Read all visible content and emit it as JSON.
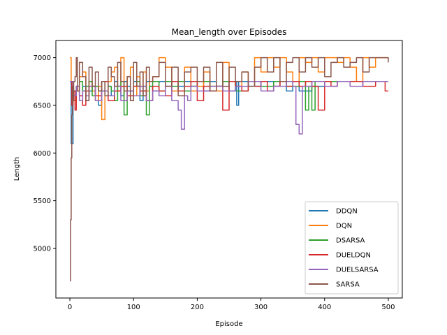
{
  "chart_data": {
    "type": "line",
    "title": "Mean_length over Episodes",
    "xlabel": "Episode",
    "ylabel": "Length",
    "xlim": [
      -22,
      522
    ],
    "ylim": [
      4480,
      7180
    ],
    "xticks": [
      0,
      100,
      200,
      300,
      400,
      500
    ],
    "xtick_labels": [
      "0",
      "100",
      "200",
      "300",
      "400",
      "500"
    ],
    "yticks": [
      5000,
      5500,
      6000,
      6500,
      7000
    ],
    "ytick_labels": [
      "5000",
      "5500",
      "6000",
      "6500",
      "7000"
    ],
    "grid": false,
    "legend_position": "lower-right",
    "series": [
      {
        "name": "DDQN",
        "color": "#1f77b4",
        "x": [
          0,
          2,
          5,
          10,
          15,
          20,
          25,
          30,
          35,
          40,
          45,
          50,
          55,
          60,
          65,
          70,
          75,
          80,
          85,
          90,
          95,
          100,
          105,
          110,
          115,
          120,
          125,
          130,
          140,
          150,
          160,
          170,
          180,
          190,
          200,
          210,
          220,
          230,
          240,
          250,
          260,
          262,
          265,
          280,
          300,
          320,
          330,
          340,
          350,
          360,
          380,
          400,
          420,
          440,
          460,
          480,
          500
        ],
        "y": [
          6750,
          6100,
          6550,
          6650,
          6600,
          6700,
          6550,
          6650,
          6700,
          6600,
          6500,
          6650,
          6750,
          6700,
          6600,
          6750,
          6700,
          6600,
          6750,
          6700,
          6650,
          6750,
          6700,
          6550,
          6700,
          6750,
          6700,
          6650,
          6750,
          6700,
          6750,
          6700,
          6750,
          6700,
          6750,
          6650,
          6750,
          6700,
          6750,
          6650,
          6750,
          6500,
          6750,
          6700,
          6750,
          6700,
          6750,
          6650,
          6750,
          6650,
          6700,
          6750,
          6750,
          6750,
          6750,
          6750,
          6750
        ]
      },
      {
        "name": "DQN",
        "color": "#ff7f0e",
        "x": [
          0,
          2,
          5,
          10,
          15,
          20,
          25,
          30,
          35,
          40,
          45,
          50,
          55,
          60,
          65,
          70,
          75,
          80,
          85,
          90,
          95,
          100,
          105,
          110,
          115,
          120,
          125,
          130,
          140,
          150,
          160,
          170,
          180,
          190,
          200,
          210,
          220,
          230,
          240,
          250,
          260,
          270,
          280,
          290,
          300,
          310,
          320,
          330,
          340,
          350,
          360,
          370,
          380,
          390,
          400,
          410,
          420,
          430,
          440,
          450,
          460,
          470,
          480,
          490,
          500
        ],
        "y": [
          7000,
          6750,
          6550,
          6650,
          6800,
          6850,
          6600,
          6750,
          6650,
          6550,
          6700,
          6350,
          6600,
          6750,
          6850,
          6900,
          6650,
          7000,
          6550,
          6800,
          6900,
          6600,
          6800,
          6700,
          6850,
          6650,
          6750,
          6800,
          7000,
          6900,
          6650,
          6750,
          6900,
          6650,
          6700,
          6850,
          6700,
          6650,
          6950,
          6750,
          6700,
          6850,
          6750,
          7000,
          6850,
          7000,
          6900,
          7000,
          6850,
          6750,
          7000,
          6950,
          7000,
          6850,
          7000,
          7000,
          6950,
          7000,
          6900,
          6750,
          7000,
          6900,
          7000,
          7000,
          7000
        ]
      },
      {
        "name": "DSARSA",
        "color": "#2ca02c",
        "x": [
          0,
          5,
          10,
          15,
          20,
          25,
          30,
          35,
          40,
          45,
          50,
          55,
          60,
          65,
          70,
          75,
          80,
          85,
          90,
          95,
          100,
          105,
          110,
          115,
          120,
          125,
          130,
          140,
          150,
          160,
          170,
          180,
          190,
          200,
          220,
          240,
          260,
          280,
          300,
          320,
          340,
          360,
          370,
          375,
          380,
          385,
          400,
          420,
          440,
          460,
          480,
          500
        ],
        "y": [
          6750,
          6650,
          6700,
          6750,
          6650,
          6700,
          6750,
          6600,
          6700,
          6650,
          6750,
          6600,
          6700,
          6650,
          6550,
          6700,
          6750,
          6400,
          6650,
          6550,
          6700,
          6750,
          6600,
          6650,
          6400,
          6700,
          6750,
          6650,
          6750,
          6700,
          6750,
          6650,
          6700,
          6750,
          6700,
          6750,
          6650,
          6750,
          6700,
          6750,
          6700,
          6750,
          6450,
          6700,
          6450,
          6750,
          6750,
          6750,
          6750,
          6750,
          6750,
          6750
        ]
      },
      {
        "name": "DUELDQN",
        "color": "#d62728",
        "x": [
          0,
          3,
          5,
          8,
          10,
          15,
          20,
          25,
          30,
          40,
          50,
          60,
          70,
          80,
          90,
          100,
          110,
          120,
          130,
          140,
          150,
          160,
          170,
          180,
          190,
          200,
          210,
          220,
          230,
          240,
          250,
          260,
          270,
          280,
          290,
          300,
          310,
          320,
          330,
          340,
          350,
          360,
          370,
          380,
          390,
          400,
          410,
          420,
          440,
          460,
          480,
          490,
          495,
          500
        ],
        "y": [
          6750,
          6500,
          6650,
          6450,
          6700,
          6600,
          6500,
          6650,
          6700,
          6600,
          6750,
          6550,
          6650,
          6700,
          6600,
          6700,
          6650,
          6550,
          6700,
          6650,
          6600,
          6750,
          6650,
          6700,
          6750,
          6550,
          6700,
          6650,
          6700,
          6450,
          6750,
          6700,
          6650,
          6750,
          6700,
          6750,
          6650,
          6700,
          6750,
          6700,
          6750,
          6700,
          6750,
          6700,
          6450,
          6750,
          6700,
          6750,
          6750,
          6700,
          6750,
          6750,
          6650,
          6650
        ]
      },
      {
        "name": "DUELSARSA",
        "color": "#9467bd",
        "x": [
          0,
          5,
          10,
          15,
          20,
          25,
          30,
          40,
          50,
          60,
          70,
          80,
          90,
          100,
          110,
          120,
          130,
          140,
          150,
          160,
          170,
          175,
          180,
          185,
          190,
          200,
          220,
          240,
          260,
          280,
          300,
          320,
          340,
          350,
          355,
          360,
          365,
          380,
          400,
          420,
          440,
          460,
          480,
          500
        ],
        "y": [
          6750,
          6600,
          6700,
          6550,
          6650,
          6600,
          6700,
          6550,
          6650,
          6600,
          6700,
          6550,
          6650,
          6600,
          6700,
          6550,
          6650,
          6600,
          6700,
          6550,
          6450,
          6250,
          6600,
          6550,
          6700,
          6650,
          6700,
          6650,
          6700,
          6750,
          6650,
          6700,
          6750,
          6700,
          6300,
          6200,
          6700,
          6750,
          6700,
          6750,
          6700,
          6750,
          6750,
          6750
        ]
      },
      {
        "name": "SARSA",
        "color": "#8c564b",
        "x": [
          0,
          1,
          2,
          3,
          4,
          5,
          6,
          8,
          10,
          12,
          15,
          20,
          25,
          30,
          35,
          40,
          45,
          50,
          55,
          60,
          65,
          70,
          75,
          80,
          85,
          90,
          95,
          100,
          105,
          110,
          115,
          120,
          125,
          130,
          140,
          150,
          160,
          170,
          180,
          190,
          200,
          210,
          220,
          230,
          240,
          250,
          260,
          270,
          280,
          290,
          300,
          310,
          320,
          330,
          340,
          350,
          360,
          370,
          380,
          390,
          400,
          410,
          420,
          430,
          440,
          450,
          460,
          470,
          480,
          490,
          500
        ],
        "y": [
          4660,
          5300,
          5950,
          6400,
          6700,
          6550,
          6750,
          6800,
          7000,
          6650,
          6950,
          6800,
          6550,
          6900,
          6700,
          6850,
          6650,
          6750,
          6600,
          6900,
          6800,
          6700,
          6950,
          6750,
          6650,
          6800,
          6550,
          6950,
          6700,
          6850,
          6600,
          6900,
          6750,
          6800,
          6950,
          6700,
          6900,
          6600,
          6850,
          6900,
          6750,
          6900,
          6650,
          6950,
          6700,
          6900,
          6750,
          6850,
          6700,
          6900,
          7000,
          6850,
          7000,
          6750,
          6950,
          7000,
          6850,
          7000,
          6900,
          7000,
          6800,
          6950,
          7000,
          6900,
          6950,
          7000,
          6850,
          7000,
          7000,
          7000,
          6950
        ]
      }
    ]
  }
}
